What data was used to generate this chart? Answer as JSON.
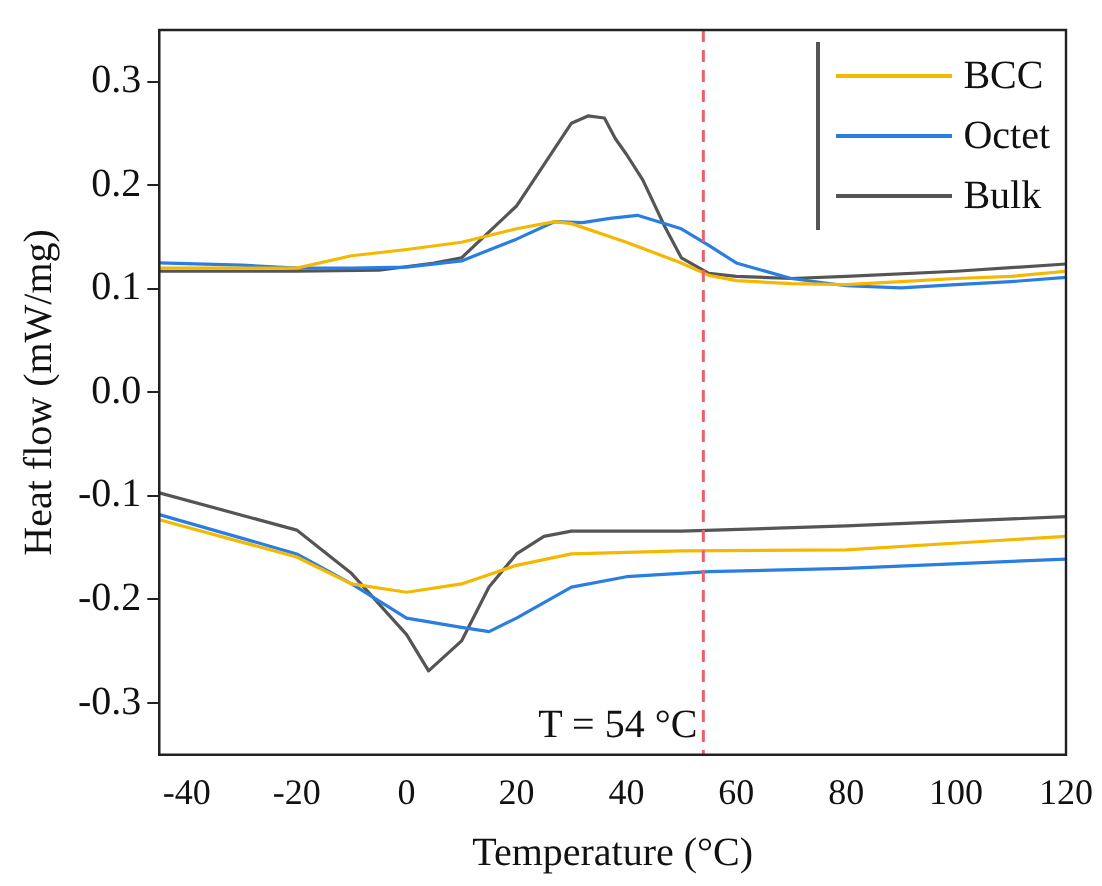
{
  "chart_data": {
    "type": "line",
    "xlabel": "Temperature (°C)",
    "ylabel": "Heat flow (mW/mg)",
    "xlim": [
      -45,
      120
    ],
    "xticks": [
      -40,
      -20,
      0,
      20,
      40,
      60,
      80,
      100,
      120
    ],
    "ylim": [
      -0.35,
      0.35
    ],
    "yticks": [
      -0.3,
      -0.2,
      -0.1,
      {
        "value": 0,
        "label": "0.0"
      },
      0.1,
      0.2,
      0.3
    ],
    "grid": false,
    "legend": "top right",
    "marker": "none",
    "line_style": "solid",
    "ref_lines": [
      {
        "axis": "x",
        "value": 54,
        "label": "T = 54 °C",
        "color": "#e8636b",
        "line_style": "dashed"
      }
    ],
    "series": [
      {
        "name": "BCC",
        "color": "#f5b800",
        "x": [
          -45,
          -30,
          -20,
          -10,
          0,
          10,
          20,
          27,
          30,
          40,
          50,
          55,
          60,
          70,
          80,
          90,
          100,
          110,
          120
        ],
        "values": [
          0.12,
          0.12,
          0.12,
          0.132,
          0.138,
          0.145,
          0.158,
          0.165,
          0.163,
          0.145,
          0.125,
          0.113,
          0.108,
          0.105,
          0.104,
          0.107,
          0.11,
          0.112,
          0.117
        ]
      },
      {
        "name": "Octet",
        "color": "#2a7de1",
        "x": [
          -45,
          -30,
          -20,
          -10,
          0,
          10,
          20,
          27,
          32,
          37,
          42,
          50,
          55,
          60,
          70,
          80,
          90,
          100,
          110,
          120
        ],
        "values": [
          0.125,
          0.123,
          0.12,
          0.12,
          0.121,
          0.127,
          0.148,
          0.165,
          0.164,
          0.168,
          0.171,
          0.158,
          0.142,
          0.125,
          0.11,
          0.103,
          0.101,
          0.104,
          0.107,
          0.111
        ]
      },
      {
        "name": "Bulk",
        "color": "#555555",
        "x": [
          -45,
          -20,
          -5,
          5,
          10,
          20,
          25,
          30,
          33,
          36,
          38,
          40,
          43,
          47,
          50,
          55,
          60,
          70,
          80,
          100,
          120
        ],
        "values": [
          0.117,
          0.117,
          0.118,
          0.125,
          0.13,
          0.18,
          0.22,
          0.26,
          0.267,
          0.265,
          0.245,
          0.23,
          0.205,
          0.16,
          0.13,
          0.115,
          0.112,
          0.11,
          0.112,
          0.117,
          0.124
        ]
      },
      {
        "color": "#f5b800",
        "x": [
          -45,
          -20,
          -10,
          0,
          10,
          20,
          30,
          50,
          80,
          120
        ],
        "values": [
          -0.123,
          -0.159,
          -0.185,
          -0.193,
          -0.185,
          -0.167,
          -0.156,
          -0.153,
          -0.152,
          -0.139
        ]
      },
      {
        "color": "#2a7de1",
        "x": [
          -45,
          -20,
          -10,
          0,
          10,
          15,
          20,
          30,
          40,
          55,
          80,
          120
        ],
        "values": [
          -0.118,
          -0.156,
          -0.185,
          -0.218,
          -0.227,
          -0.231,
          -0.218,
          -0.188,
          -0.178,
          -0.173,
          -0.17,
          -0.161
        ]
      },
      {
        "color": "#555555",
        "x": [
          -45,
          -20,
          -10,
          0,
          4,
          10,
          15,
          20,
          25,
          30,
          50,
          80,
          120
        ],
        "values": [
          -0.097,
          -0.133,
          -0.175,
          -0.234,
          -0.269,
          -0.24,
          -0.188,
          -0.156,
          -0.139,
          -0.134,
          -0.134,
          -0.129,
          -0.12
        ]
      }
    ]
  }
}
